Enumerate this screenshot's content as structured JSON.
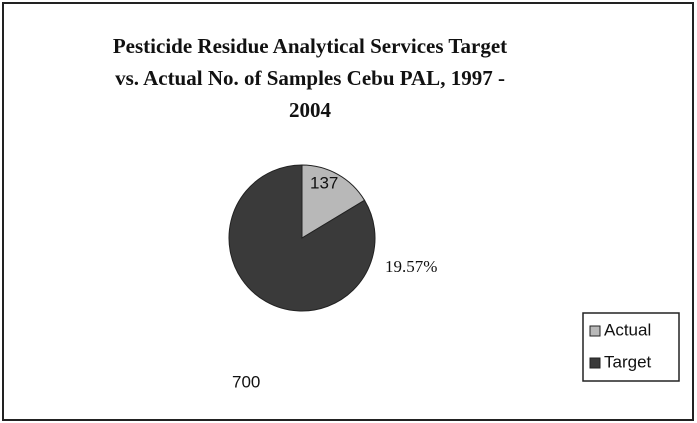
{
  "chart_data": {
    "type": "pie",
    "title": "Pesticide Residue Analytical Services Target vs. Actual No. of Samples Cebu PAL, 1997 - 2004",
    "categories": [
      "Actual",
      "Target"
    ],
    "values": [
      137,
      700
    ],
    "colors": [
      "#b8b8b8",
      "#3a3a3a"
    ],
    "annotation": "19.57%",
    "legend": "right"
  }
}
